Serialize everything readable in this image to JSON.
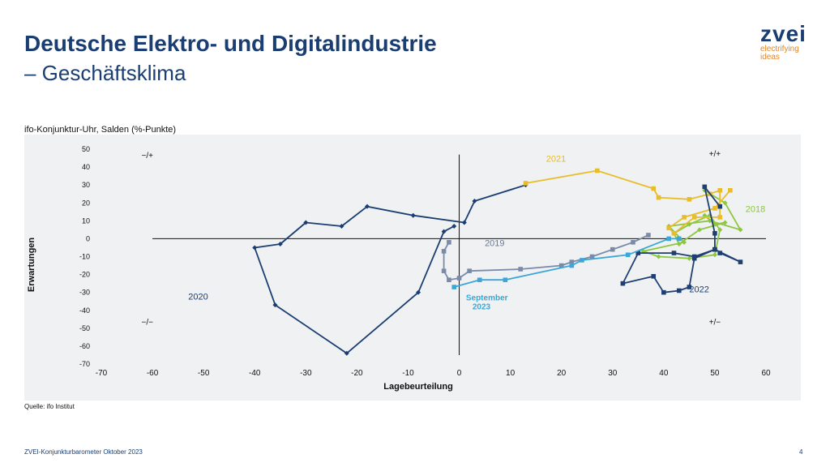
{
  "header": {
    "title": "Deutsche Elektro- und Digitalindustrie",
    "subtitle": "– Geschäftsklima"
  },
  "logo": {
    "word": "zvei",
    "tagline_1": "electrifying",
    "tagline_2": "ideas"
  },
  "chart_heading": "ifo-Konjunktur-Uhr, Salden (%-Punkte)",
  "source": "Quelle: ifo Institut",
  "footer": {
    "text": "ZVEI-Konjunkturbarometer Oktober 2023",
    "page": "4"
  },
  "colors": {
    "title": "#1b3e72",
    "accent_orange": "#e3862a",
    "panel_bg": "#eff1f3",
    "s2018": "#8dc63f",
    "s2019": "#7a8aa8",
    "s2020": "#1b3e72",
    "s2021": "#e8bd2b",
    "s2022": "#1f3f73",
    "s2023": "#3aa7d8"
  },
  "chart_data": {
    "type": "scatter",
    "xlabel": "Lagebeurteilung",
    "ylabel": "Erwartungen",
    "xlim": [
      -70,
      60
    ],
    "ylim": [
      -70,
      50
    ],
    "xticks": [
      -70,
      -60,
      -50,
      -40,
      -30,
      -20,
      -10,
      0,
      10,
      20,
      30,
      40,
      50,
      60
    ],
    "yticks": [
      50,
      40,
      30,
      20,
      10,
      0,
      -10,
      -20,
      -30,
      -40,
      -50,
      -60,
      -70
    ],
    "grid": false,
    "quadrant_labels": [
      {
        "text": "−/+",
        "x": -61,
        "y": 45
      },
      {
        "text": "+/+",
        "x": 50,
        "y": 46
      },
      {
        "text": "−/−",
        "x": -61,
        "y": -48
      },
      {
        "text": "+/−",
        "x": 50,
        "y": -48
      }
    ],
    "series": [
      {
        "name": "2018",
        "color": "#8dc63f",
        "marker": "diamond",
        "label_x": 56,
        "label_y": 15,
        "x": [
          48,
          52,
          55,
          49,
          41,
          44,
          36,
          39,
          45,
          50,
          51,
          49,
          45,
          42,
          43,
          47,
          52,
          50,
          48
        ],
        "y": [
          27,
          20,
          5,
          10,
          7,
          -2,
          -7,
          -10,
          -11,
          -9,
          5,
          13,
          8,
          3,
          -3,
          5,
          9,
          8,
          13
        ]
      },
      {
        "name": "2019",
        "color": "#7a8aa8",
        "marker": "square",
        "label_x": 5,
        "label_y": -4,
        "x": [
          37,
          34,
          30,
          26,
          22,
          20,
          12,
          2,
          0,
          -2,
          -3,
          -3,
          -2
        ],
        "y": [
          2,
          -2,
          -6,
          -10,
          -13,
          -15,
          -17,
          -18,
          -22,
          -23,
          -18,
          -7,
          -2
        ]
      },
      {
        "name": "2020",
        "color": "#1b3e72",
        "marker": "diamond",
        "label_x": -53,
        "label_y": -34,
        "x": [
          -1,
          -3,
          -8,
          -22,
          -36,
          -40,
          -35,
          -30,
          -23,
          -18,
          -9,
          1,
          3,
          13
        ],
        "y": [
          7,
          4,
          -30,
          -64,
          -37,
          -5,
          -3,
          9,
          7,
          18,
          13,
          9,
          21,
          30
        ]
      },
      {
        "name": "2021",
        "color": "#e8bd2b",
        "marker": "square",
        "label_x": 17,
        "label_y": 43,
        "x": [
          13,
          27,
          38,
          39,
          45,
          49,
          51,
          51,
          46,
          42,
          41,
          44,
          50,
          53
        ],
        "y": [
          31,
          38,
          28,
          23,
          22,
          25,
          27,
          12,
          12,
          3,
          6,
          12,
          17,
          27
        ]
      },
      {
        "name": "2022",
        "color": "#1f3f73",
        "marker": "square",
        "label_x": 45,
        "label_y": -30,
        "x": [
          51,
          48,
          50,
          50,
          46,
          42,
          35,
          32,
          38,
          40,
          43,
          45,
          46,
          50,
          55,
          51
        ],
        "y": [
          18,
          29,
          3,
          -6,
          -10,
          -8,
          -8,
          -25,
          -21,
          -30,
          -29,
          -27,
          -11,
          -6,
          -13,
          -8
        ]
      },
      {
        "name": "2023",
        "color": "#3aa7d8",
        "marker": "square",
        "label_x": 1,
        "label_y": -33,
        "x": [
          43,
          41,
          33,
          24,
          22,
          9,
          4,
          -1
        ],
        "y": [
          0,
          0,
          -9,
          -12,
          -15,
          -23,
          -23,
          -27
        ]
      }
    ],
    "annotation": {
      "text_1": "September",
      "text_2": "2023",
      "x": 1,
      "y": -33,
      "color": "#3aa7d8"
    }
  }
}
